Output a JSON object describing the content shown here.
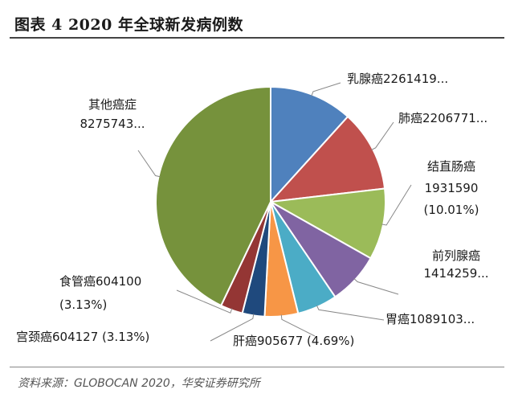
{
  "header": {
    "title": "图表 4 2020 年全球新发病例数"
  },
  "footer": {
    "source": "资料来源：GLOBOCAN 2020，华安证券研究所"
  },
  "chart_data": {
    "type": "pie",
    "title": "",
    "slices": [
      {
        "label": "乳腺癌",
        "value": 2261419,
        "color": "#4f81bd",
        "label_lines": [
          "乳腺癌2261419..."
        ]
      },
      {
        "label": "肺癌",
        "value": 2206771,
        "color": "#c0504d",
        "label_lines": [
          "肺癌2206771..."
        ]
      },
      {
        "label": "结直肠癌",
        "value": 1931590,
        "percent": 10.01,
        "color": "#9bbb59",
        "label_lines": [
          "结直肠癌",
          "1931590",
          "(10.01%)"
        ]
      },
      {
        "label": "前列腺癌",
        "value": 1414259,
        "color": "#8064a2",
        "label_lines": [
          "前列腺癌",
          "1414259..."
        ]
      },
      {
        "label": "胃癌",
        "value": 1089103,
        "color": "#4bacc6",
        "label_lines": [
          "胃癌1089103..."
        ]
      },
      {
        "label": "肝癌",
        "value": 905677,
        "percent": 4.69,
        "color": "#f79646",
        "label_lines": [
          "肝癌905677 (4.69%)"
        ]
      },
      {
        "label": "宫颈癌",
        "value": 604127,
        "percent": 3.13,
        "color": "#1f497d",
        "label_lines": [
          "宫颈癌604127 (3.13%)"
        ]
      },
      {
        "label": "食管癌",
        "value": 604100,
        "percent": 3.13,
        "color": "#943634",
        "label_lines": [
          "食管癌604100",
          "(3.13%)"
        ]
      },
      {
        "label": "其他癌症",
        "value": 8275743,
        "color": "#76923c",
        "label_lines": [
          "其他癌症",
          "8275743..."
        ]
      }
    ]
  }
}
